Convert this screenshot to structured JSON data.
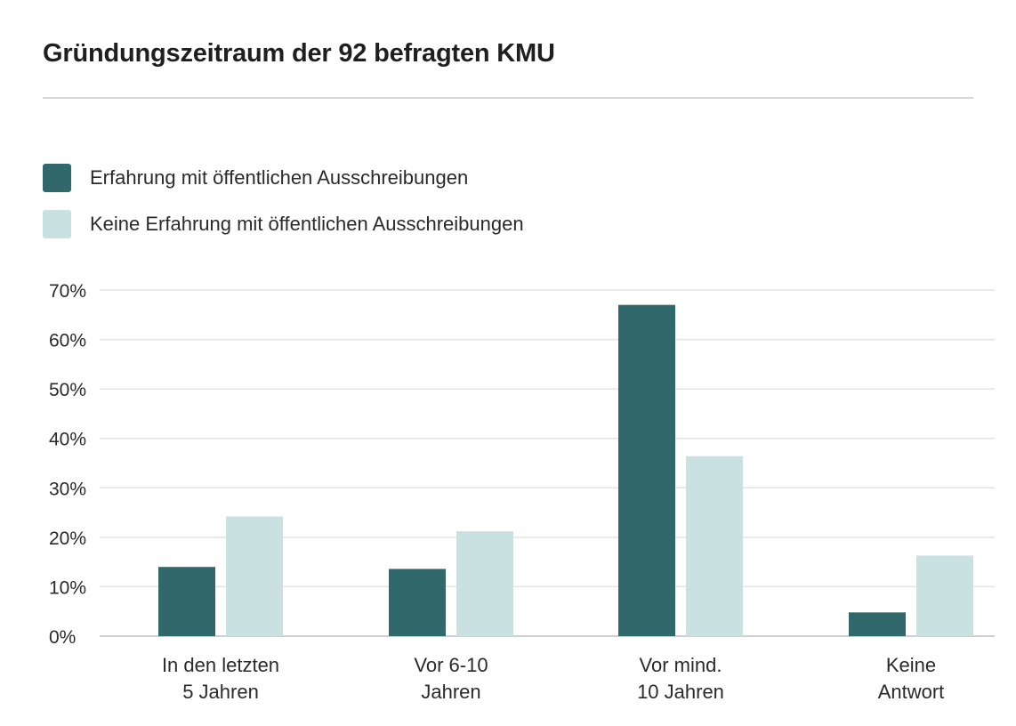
{
  "chart_data": {
    "type": "bar",
    "title": "Gründungszeitraum der 92 befragten KMU",
    "xlabel": "",
    "ylabel": "",
    "ylim": [
      0,
      70
    ],
    "y_ticks": [
      "0%",
      "10%",
      "20%",
      "30%",
      "40%",
      "50%",
      "60%",
      "70%"
    ],
    "y_tick_values": [
      0,
      10,
      20,
      30,
      40,
      50,
      60,
      70
    ],
    "categories": [
      [
        "In den letzten",
        "5 Jahren"
      ],
      [
        "Vor 6-10",
        "Jahren"
      ],
      [
        "Vor mind.",
        "10 Jahren"
      ],
      [
        "Keine",
        "Antwort"
      ]
    ],
    "series": [
      {
        "name": "Erfahrung mit öffentlichen Ausschreibungen",
        "color": "#31686b",
        "values": [
          14,
          13.6,
          67,
          4.8
        ]
      },
      {
        "name": "Keine Erfahrung mit öffentlichen Ausschreibungen",
        "color": "#c9e1e1",
        "values": [
          24.2,
          21.2,
          36.4,
          16.3
        ]
      }
    ],
    "legend_position": "top-left",
    "grid": true
  }
}
